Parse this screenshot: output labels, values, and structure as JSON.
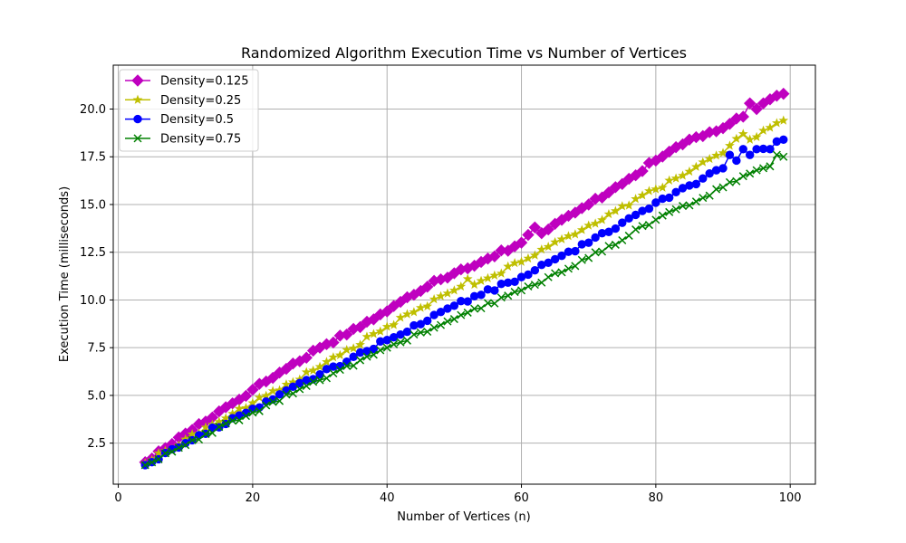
{
  "chart_data": {
    "type": "line",
    "title": "Randomized Algorithm Execution Time vs Number of Vertices",
    "xlabel": "Number of Vertices (n)",
    "ylabel": "Execution Time (milliseconds)",
    "xlim": [
      -0.75,
      103.75
    ],
    "ylim": [
      0.35,
      22.3
    ],
    "xticks": [
      0,
      20,
      40,
      60,
      80,
      100
    ],
    "yticks": [
      2.5,
      5.0,
      7.5,
      10.0,
      12.5,
      15.0,
      17.5,
      20.0
    ],
    "xtick_labels": [
      "0",
      "20",
      "40",
      "60",
      "80",
      "100"
    ],
    "ytick_labels": [
      "2.5",
      "5.0",
      "7.5",
      "10.0",
      "12.5",
      "15.0",
      "17.5",
      "20.0"
    ],
    "grid": true,
    "legend_position": "top-left",
    "x_start": 4,
    "x_end": 99,
    "series": [
      {
        "name": "Density=0.125",
        "color": "#bf00bf",
        "marker": "diamond",
        "anchors": [
          [
            4,
            1.5
          ],
          [
            10,
            3.0
          ],
          [
            20,
            5.3
          ],
          [
            30,
            7.5
          ],
          [
            40,
            9.4
          ],
          [
            47,
            11.0
          ],
          [
            50,
            11.4
          ],
          [
            60,
            13.0
          ],
          [
            62,
            13.8
          ],
          [
            63,
            13.5
          ],
          [
            70,
            15.0
          ],
          [
            80,
            17.3
          ],
          [
            85,
            18.4
          ],
          [
            90,
            19.0
          ],
          [
            93,
            19.6
          ],
          [
            94,
            20.3
          ],
          [
            95,
            20.0
          ],
          [
            96,
            20.3
          ],
          [
            98,
            20.7
          ],
          [
            99,
            20.8
          ]
        ]
      },
      {
        "name": "Density=0.25",
        "color": "#bfbf00",
        "marker": "star",
        "anchors": [
          [
            4,
            1.45
          ],
          [
            10,
            2.7
          ],
          [
            20,
            4.6
          ],
          [
            30,
            6.5
          ],
          [
            40,
            8.6
          ],
          [
            50,
            10.5
          ],
          [
            52,
            11.1
          ],
          [
            53,
            10.8
          ],
          [
            60,
            12.0
          ],
          [
            70,
            13.9
          ],
          [
            80,
            15.8
          ],
          [
            90,
            17.7
          ],
          [
            93,
            18.7
          ],
          [
            94,
            18.4
          ],
          [
            99,
            19.4
          ]
        ]
      },
      {
        "name": "Density=0.5",
        "color": "#0000ff",
        "marker": "circle",
        "anchors": [
          [
            4,
            1.35
          ],
          [
            10,
            2.5
          ],
          [
            20,
            4.3
          ],
          [
            30,
            6.1
          ],
          [
            40,
            7.9
          ],
          [
            50,
            9.7
          ],
          [
            60,
            11.2
          ],
          [
            70,
            13.0
          ],
          [
            80,
            15.1
          ],
          [
            90,
            16.9
          ],
          [
            91,
            17.6
          ],
          [
            92,
            17.3
          ],
          [
            93,
            17.9
          ],
          [
            94,
            17.6
          ],
          [
            95,
            17.9
          ],
          [
            97,
            17.9
          ],
          [
            98,
            18.3
          ],
          [
            99,
            18.4
          ]
        ]
      },
      {
        "name": "Density=0.75",
        "color": "#008000",
        "marker": "x",
        "anchors": [
          [
            4,
            1.35
          ],
          [
            10,
            2.4
          ],
          [
            20,
            4.1
          ],
          [
            30,
            5.8
          ],
          [
            40,
            7.5
          ],
          [
            50,
            9.0
          ],
          [
            60,
            10.5
          ],
          [
            70,
            12.2
          ],
          [
            80,
            14.2
          ],
          [
            90,
            15.9
          ],
          [
            96,
            16.9
          ],
          [
            97,
            17.0
          ],
          [
            98,
            17.6
          ],
          [
            99,
            17.5
          ]
        ]
      }
    ]
  }
}
